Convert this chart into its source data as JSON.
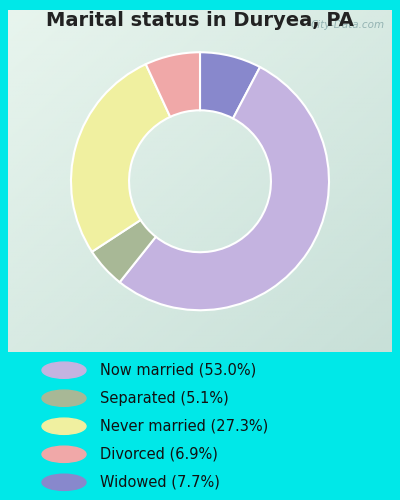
{
  "title": "Marital status in Duryea, PA",
  "slices": [
    {
      "label": "Now married (53.0%)",
      "value": 53.0,
      "color": "#c4b3e0"
    },
    {
      "label": "Separated (5.1%)",
      "value": 5.1,
      "color": "#a8b896"
    },
    {
      "label": "Never married (27.3%)",
      "value": 27.3,
      "color": "#f0f0a0"
    },
    {
      "label": "Divorced (6.9%)",
      "value": 6.9,
      "color": "#f0a8a8"
    },
    {
      "label": "Widowed (7.7%)",
      "value": 7.7,
      "color": "#8888cc"
    }
  ],
  "legend_colors": [
    "#c4b3e0",
    "#a8b896",
    "#f0f0a0",
    "#f0a8a8",
    "#8888cc"
  ],
  "legend_labels": [
    "Now married (53.0%)",
    "Separated (5.1%)",
    "Never married (27.3%)",
    "Divorced (6.9%)",
    "Widowed (7.7%)"
  ],
  "bg_outer": "#00e8e8",
  "bg_inner_grad_left": "#e8f5ee",
  "bg_inner_grad_right": "#d0e8d8",
  "watermark": "City-Data.com",
  "title_fontsize": 14,
  "title_color": "#222222",
  "legend_fontsize": 10.5
}
